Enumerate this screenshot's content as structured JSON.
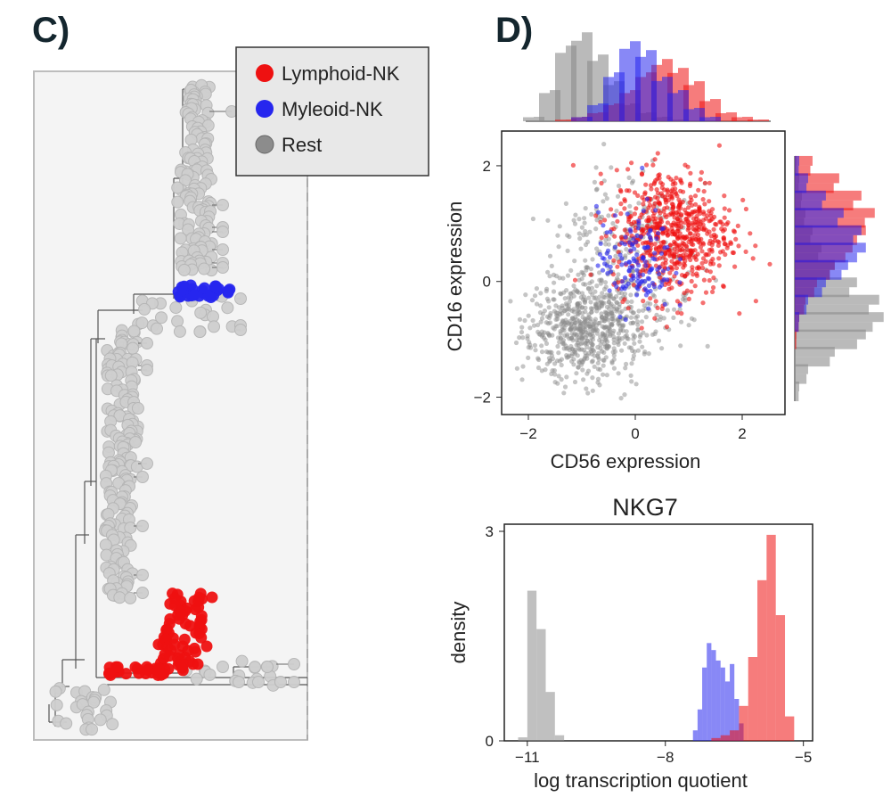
{
  "panel_labels": {
    "left": "C)",
    "right": "D)"
  },
  "colors": {
    "lymphoid": "#ee1111",
    "myeloid": "#2626ee",
    "rest": "#8c8c8c",
    "rest_tree": "#cfcfcf",
    "overlap": "#8a1fb0"
  },
  "legend": {
    "entries": [
      {
        "label": "Lymphoid-NK",
        "color": "#ee1111"
      },
      {
        "label": "Myleoid-NK",
        "color": "#2626ee"
      },
      {
        "label": "Rest",
        "color": "#8c8c8c"
      }
    ]
  },
  "chart_data": [
    {
      "type": "tree",
      "panel": "C",
      "description": "lineage tree with leaf nodes colored by group",
      "groups": [
        "Lymphoid-NK",
        "Myleoid-NK",
        "Rest"
      ]
    },
    {
      "type": "scatter",
      "panel": "D",
      "xlabel": "CD56 expression",
      "ylabel": "CD16 expression",
      "xlim": [
        -2.5,
        2.8
      ],
      "ylim": [
        -2.3,
        2.6
      ],
      "xticks": [
        -2,
        0,
        2
      ],
      "yticks": [
        -2,
        0,
        2
      ],
      "series": [
        {
          "name": "Rest",
          "center": [
            -1.0,
            -0.85
          ],
          "spread": [
            0.55,
            0.42
          ],
          "count": 900
        },
        {
          "name": "Lymphoid-NK",
          "center": [
            0.7,
            0.85
          ],
          "spread": [
            0.55,
            0.55
          ],
          "count": 650
        },
        {
          "name": "Myleoid-NK",
          "center": [
            0.0,
            0.35
          ],
          "spread": [
            0.35,
            0.45
          ],
          "count": 140
        }
      ],
      "marginal_top": {
        "x": [
          -1.9,
          -1.6,
          -1.3,
          -1.0,
          -0.7,
          -0.4,
          -0.1,
          0.2,
          0.5,
          0.8,
          1.1,
          1.4,
          1.7,
          2.0,
          2.3
        ],
        "Rest": [
          0.05,
          0.35,
          0.85,
          1.0,
          0.75,
          0.45,
          0.2,
          0.1,
          0.05,
          0.02,
          0.01,
          0,
          0,
          0,
          0
        ],
        "Lymphoid-NK": [
          0,
          0,
          0.02,
          0.05,
          0.1,
          0.2,
          0.35,
          0.55,
          0.7,
          0.6,
          0.45,
          0.25,
          0.1,
          0.05,
          0.02
        ],
        "Myleoid-NK": [
          0,
          0,
          0,
          0.05,
          0.2,
          0.55,
          0.9,
          0.8,
          0.5,
          0.35,
          0.15,
          0.05,
          0,
          0,
          0
        ]
      },
      "marginal_right": {
        "y": [
          2.0,
          1.7,
          1.4,
          1.1,
          0.8,
          0.5,
          0.2,
          -0.1,
          -0.4,
          -0.7,
          -1.0,
          -1.3,
          -1.6,
          -1.9
        ],
        "Rest": [
          0.02,
          0.05,
          0.08,
          0.12,
          0.2,
          0.3,
          0.45,
          0.7,
          0.95,
          1.0,
          0.8,
          0.45,
          0.15,
          0.05
        ],
        "Lymphoid-NK": [
          0.2,
          0.5,
          0.75,
          0.9,
          0.8,
          0.65,
          0.45,
          0.25,
          0.12,
          0.05,
          0.02,
          0,
          0,
          0
        ],
        "Myleoid-NK": [
          0.05,
          0.15,
          0.35,
          0.55,
          0.75,
          0.8,
          0.6,
          0.35,
          0.15,
          0.05,
          0,
          0,
          0,
          0
        ]
      }
    },
    {
      "type": "histogram",
      "panel": "D",
      "title": "NKG7",
      "xlabel": "log transcription quotient",
      "ylabel": "density",
      "xlim": [
        -11.5,
        -4.8
      ],
      "ylim": [
        0,
        3.0
      ],
      "xticks": [
        -11,
        -8,
        -5
      ],
      "yticks": [
        0,
        3
      ],
      "series": [
        {
          "name": "Rest",
          "bins": [
            [
              -11.2,
              -11.0,
              0.05
            ],
            [
              -11.0,
              -10.8,
              2.15
            ],
            [
              -10.8,
              -10.6,
              1.6
            ],
            [
              -10.6,
              -10.4,
              0.7
            ],
            [
              -10.4,
              -10.2,
              0.08
            ]
          ]
        },
        {
          "name": "Myleoid-NK",
          "bins": [
            [
              -7.4,
              -7.3,
              0.15
            ],
            [
              -7.3,
              -7.2,
              0.45
            ],
            [
              -7.2,
              -7.1,
              1.05
            ],
            [
              -7.1,
              -7.0,
              1.4
            ],
            [
              -7.0,
              -6.9,
              1.3
            ],
            [
              -6.9,
              -6.8,
              1.15
            ],
            [
              -6.8,
              -6.7,
              1.05
            ],
            [
              -6.7,
              -6.6,
              0.85
            ],
            [
              -6.6,
              -6.5,
              1.1
            ],
            [
              -6.5,
              -6.4,
              0.6
            ],
            [
              -6.4,
              -6.3,
              0.25
            ]
          ]
        },
        {
          "name": "Lymphoid-NK",
          "bins": [
            [
              -7.0,
              -6.8,
              0.04
            ],
            [
              -6.8,
              -6.6,
              0.08
            ],
            [
              -6.6,
              -6.4,
              0.15
            ],
            [
              -6.4,
              -6.2,
              0.5
            ],
            [
              -6.2,
              -6.0,
              1.2
            ],
            [
              -6.0,
              -5.8,
              2.3
            ],
            [
              -5.8,
              -5.6,
              2.95
            ],
            [
              -5.6,
              -5.4,
              1.8
            ],
            [
              -5.4,
              -5.2,
              0.35
            ]
          ]
        }
      ]
    }
  ]
}
